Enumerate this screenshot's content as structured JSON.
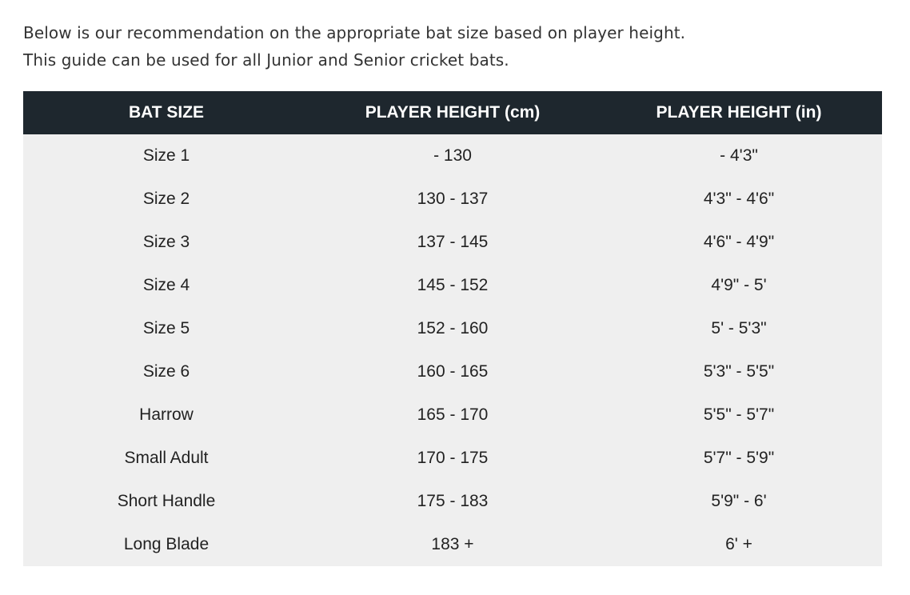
{
  "intro": {
    "line1": "Below is our recommendation on the appropriate bat size based on player height.",
    "line2": "This guide can be used for all Junior and Senior cricket bats."
  },
  "table": {
    "headers": [
      "BAT SIZE",
      "PLAYER HEIGHT (cm)",
      "PLAYER HEIGHT (in)"
    ],
    "rows": [
      [
        "Size 1",
        "- 130",
        "- 4'3\""
      ],
      [
        "Size 2",
        "130 - 137",
        "4'3\" - 4'6\""
      ],
      [
        "Size 3",
        "137 - 145",
        "4'6\" - 4'9\""
      ],
      [
        "Size 4",
        "145 - 152",
        "4'9\" - 5'"
      ],
      [
        "Size 5",
        "152 - 160",
        "5' - 5'3\""
      ],
      [
        "Size 6",
        "160 - 165",
        "5'3\" - 5'5\""
      ],
      [
        "Harrow",
        "165 - 170",
        "5'5\" - 5'7\""
      ],
      [
        "Small Adult",
        "170 - 175",
        "5'7\" - 5'9\""
      ],
      [
        "Short Handle",
        "175 - 183",
        "5'9\" - 6'"
      ],
      [
        "Long Blade",
        "183 +",
        "6' +"
      ]
    ]
  },
  "colors": {
    "header_bg": "#1e272e",
    "row_bg": "#efefef"
  }
}
